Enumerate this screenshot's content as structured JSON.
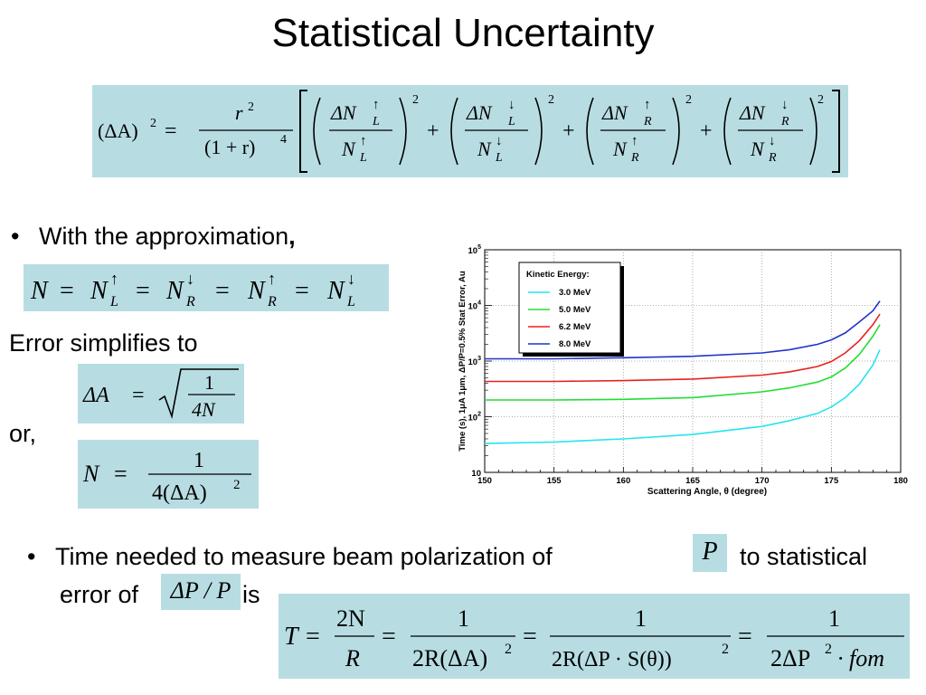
{
  "slide": {
    "title": "Statistical Uncertainty",
    "bullet1_text": "With the approximation",
    "bullet1_comma": ",",
    "error_simplifies": "Error simplifies to",
    "or_text": "or,",
    "bullet2_line1_a": "Time needed to measure beam polarization of",
    "bullet2_line1_b": "to statistical",
    "bullet2_line2_a": "error of",
    "bullet2_line2_b": "is",
    "bullet_char": "•"
  },
  "equations": {
    "main": {
      "lhs": "(ΔA)",
      "lhs_exp": "2",
      "eq": "=",
      "frac_num": "r",
      "frac_num_exp": "2",
      "frac_den": "(1 + r)",
      "frac_den_exp": "4",
      "terms": [
        {
          "num": "ΔN",
          "sub": "L",
          "arrow": "↑",
          "den": "N"
        },
        {
          "num": "ΔN",
          "sub": "L",
          "arrow": "↓",
          "den": "N"
        },
        {
          "num": "ΔN",
          "sub": "R",
          "arrow": "↑",
          "den": "N"
        },
        {
          "num": "ΔN",
          "sub": "R",
          "arrow": "↓",
          "den": "N"
        }
      ],
      "plus": "+",
      "term_exp": "2"
    },
    "approx": {
      "n": "N",
      "eq": "=",
      "parts": [
        {
          "base": "N",
          "sub": "L",
          "arrow": "↑"
        },
        {
          "base": "N",
          "sub": "R",
          "arrow": "↓"
        },
        {
          "base": "N",
          "sub": "R",
          "arrow": "↑"
        },
        {
          "base": "N",
          "sub": "L",
          "arrow": "↓"
        }
      ]
    },
    "deltaA": {
      "lhs": "ΔA",
      "eq": "=",
      "num": "1",
      "den": "4N"
    },
    "nform": {
      "lhs": "N",
      "eq": "=",
      "num": "1",
      "den": "4(ΔA)",
      "den_exp": "2"
    },
    "p_symbol": "P",
    "dp_over_p": "ΔP / P",
    "time": {
      "lhs": "T",
      "eq": "=",
      "f1_num": "2N",
      "f1_den": "R",
      "f2_num": "1",
      "f2_den": "2R(ΔA)",
      "f2_exp": "2",
      "f3_num": "1",
      "f3_den": "2R(ΔP · S(θ))",
      "f3_exp": "2",
      "f4_num": "1",
      "f4_den_a": "2ΔP",
      "f4_exp": "2",
      "f4_den_b": "· fom"
    }
  },
  "colors": {
    "eq_box": "#b7dde3",
    "series_cyan": "#22e5f0",
    "series_green": "#22dd33",
    "series_red": "#e82020",
    "series_blue": "#2233cc"
  },
  "chart_data": {
    "type": "line",
    "xlabel": "Scattering Angle, θ (degree)",
    "ylabel": "Time (s), 1μA 1μm, ΔP/P=0.5% Stat Error, Au",
    "xlim": [
      150,
      180
    ],
    "ylim": [
      10,
      100000
    ],
    "yscale": "log",
    "xticks": [
      150,
      155,
      160,
      165,
      170,
      175,
      180
    ],
    "ytick_labels": [
      {
        "value": 10,
        "base": "10",
        "exp": ""
      },
      {
        "value": 100,
        "base": "10",
        "exp": "2"
      },
      {
        "value": 1000,
        "base": "10",
        "exp": "3"
      },
      {
        "value": 10000,
        "base": "10",
        "exp": "4"
      },
      {
        "value": 100000,
        "base": "10",
        "exp": "5"
      }
    ],
    "grid": true,
    "legend_title": "Kinetic Energy:",
    "legend_position": "top-left",
    "series": [
      {
        "name": "3.0 MeV",
        "color": "#22e5f0",
        "x": [
          150,
          155,
          160,
          165,
          170,
          172,
          174,
          175,
          176,
          177,
          178,
          178.5
        ],
        "y": [
          33,
          35,
          40,
          48,
          67,
          85,
          115,
          150,
          220,
          380,
          850,
          1600
        ]
      },
      {
        "name": "5.0 MeV",
        "color": "#22dd33",
        "x": [
          150,
          155,
          160,
          165,
          170,
          172,
          174,
          175,
          176,
          177,
          178,
          178.5
        ],
        "y": [
          200,
          200,
          205,
          220,
          280,
          330,
          420,
          520,
          750,
          1300,
          2800,
          4500
        ]
      },
      {
        "name": "6.2 MeV",
        "color": "#e82020",
        "x": [
          150,
          155,
          160,
          165,
          170,
          172,
          174,
          175,
          176,
          177,
          178,
          178.5
        ],
        "y": [
          430,
          430,
          445,
          475,
          560,
          640,
          800,
          980,
          1400,
          2300,
          4500,
          7000
        ]
      },
      {
        "name": "8.0 MeV",
        "color": "#2233cc",
        "x": [
          150,
          155,
          160,
          165,
          170,
          172,
          174,
          175,
          176,
          177,
          178,
          178.5
        ],
        "y": [
          1100,
          1100,
          1150,
          1220,
          1400,
          1600,
          2000,
          2400,
          3200,
          5000,
          8000,
          12000
        ]
      }
    ]
  }
}
